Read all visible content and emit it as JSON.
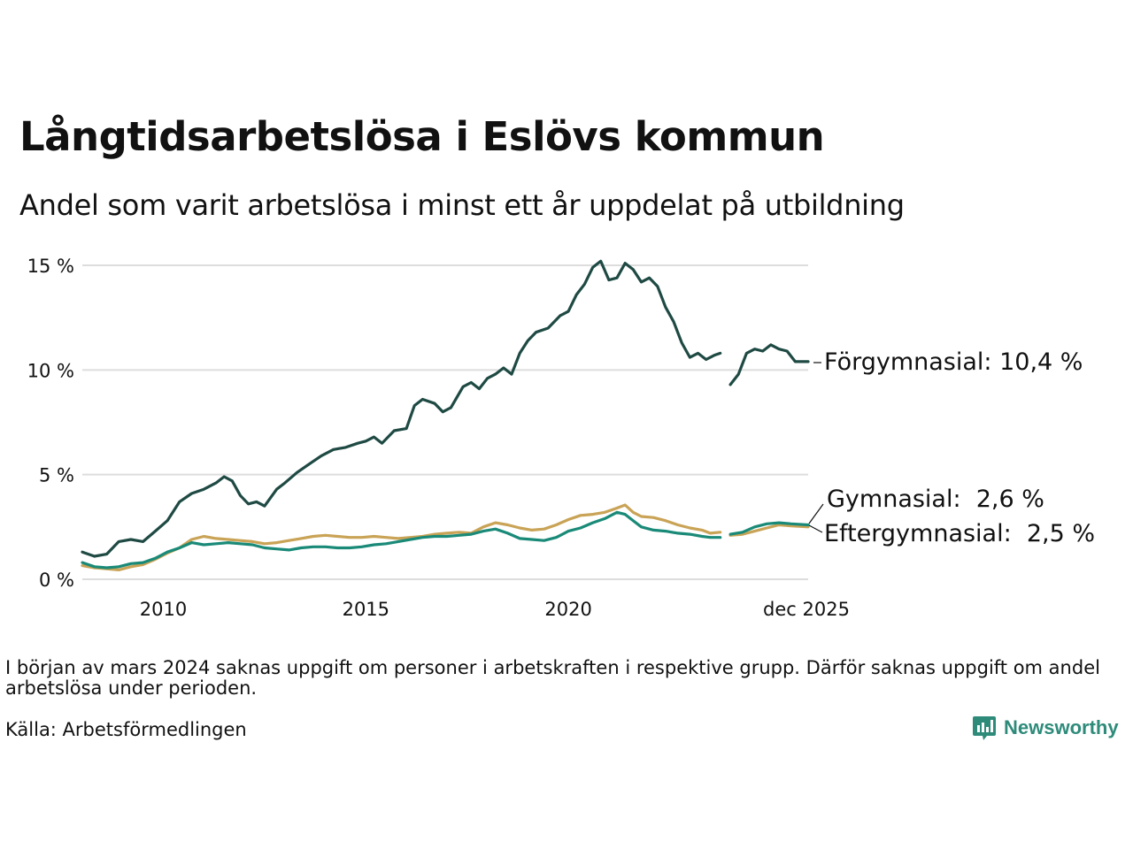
{
  "title": "Långtidsarbetslösa i Eslövs kommun",
  "subtitle": "Andel som varit arbetslösa i minst ett år uppdelat på utbildning",
  "note": "I början av mars 2024 saknas uppgift om personer i arbetskraften i respektive grupp. Därför saknas uppgift om andel arbetslösa under perioden.",
  "source": "Källa: Arbetsförmedlingen",
  "brand": "Newsworthy",
  "brand_icon": "bar-chart-speech-bubble-icon",
  "chart_data": {
    "type": "line",
    "title": "Långtidsarbetslösa i Eslövs kommun",
    "xlabel": "",
    "ylabel": "",
    "xlim": [
      2008.0,
      2025.92
    ],
    "ylim": [
      0,
      15
    ],
    "yticks": [
      0,
      5,
      10,
      15
    ],
    "ytick_labels": [
      "0 %",
      "5 %",
      "10 %",
      "15 %"
    ],
    "xticks": [
      2010,
      2015,
      2020,
      2025.92
    ],
    "xtick_labels": [
      "2010",
      "2015",
      "2020",
      "dec 2025"
    ],
    "grid": true,
    "legend": "direct labels at line ends (right)",
    "gap": [
      2023.75,
      2024.0
    ],
    "series": [
      {
        "name": "Förgymnasial",
        "label": "Förgymnasial: 10,4 %",
        "color": "#1f4a44",
        "points": [
          [
            2008.0,
            1.3
          ],
          [
            2008.3,
            1.1
          ],
          [
            2008.6,
            1.2
          ],
          [
            2008.9,
            1.8
          ],
          [
            2009.2,
            1.9
          ],
          [
            2009.5,
            1.8
          ],
          [
            2009.8,
            2.3
          ],
          [
            2010.1,
            2.8
          ],
          [
            2010.4,
            3.7
          ],
          [
            2010.7,
            4.1
          ],
          [
            2011.0,
            4.3
          ],
          [
            2011.3,
            4.6
          ],
          [
            2011.5,
            4.9
          ],
          [
            2011.7,
            4.7
          ],
          [
            2011.9,
            4.0
          ],
          [
            2012.1,
            3.6
          ],
          [
            2012.3,
            3.7
          ],
          [
            2012.5,
            3.5
          ],
          [
            2012.8,
            4.3
          ],
          [
            2013.0,
            4.6
          ],
          [
            2013.3,
            5.1
          ],
          [
            2013.6,
            5.5
          ],
          [
            2013.9,
            5.9
          ],
          [
            2014.2,
            6.2
          ],
          [
            2014.5,
            6.3
          ],
          [
            2014.8,
            6.5
          ],
          [
            2015.0,
            6.6
          ],
          [
            2015.2,
            6.8
          ],
          [
            2015.4,
            6.5
          ],
          [
            2015.7,
            7.1
          ],
          [
            2016.0,
            7.2
          ],
          [
            2016.2,
            8.3
          ],
          [
            2016.4,
            8.6
          ],
          [
            2016.7,
            8.4
          ],
          [
            2016.9,
            8.0
          ],
          [
            2017.1,
            8.2
          ],
          [
            2017.4,
            9.2
          ],
          [
            2017.6,
            9.4
          ],
          [
            2017.8,
            9.1
          ],
          [
            2018.0,
            9.6
          ],
          [
            2018.2,
            9.8
          ],
          [
            2018.4,
            10.1
          ],
          [
            2018.6,
            9.8
          ],
          [
            2018.8,
            10.8
          ],
          [
            2019.0,
            11.4
          ],
          [
            2019.2,
            11.8
          ],
          [
            2019.5,
            12.0
          ],
          [
            2019.8,
            12.6
          ],
          [
            2020.0,
            12.8
          ],
          [
            2020.2,
            13.6
          ],
          [
            2020.4,
            14.1
          ],
          [
            2020.6,
            14.9
          ],
          [
            2020.8,
            15.2
          ],
          [
            2021.0,
            14.3
          ],
          [
            2021.2,
            14.4
          ],
          [
            2021.4,
            15.1
          ],
          [
            2021.6,
            14.8
          ],
          [
            2021.8,
            14.2
          ],
          [
            2022.0,
            14.4
          ],
          [
            2022.2,
            14.0
          ],
          [
            2022.4,
            13.0
          ],
          [
            2022.6,
            12.3
          ],
          [
            2022.8,
            11.3
          ],
          [
            2023.0,
            10.6
          ],
          [
            2023.2,
            10.8
          ],
          [
            2023.4,
            10.5
          ],
          [
            2023.6,
            10.7
          ],
          [
            2023.75,
            10.8
          ],
          [
            2024.0,
            9.3
          ],
          [
            2024.2,
            9.8
          ],
          [
            2024.4,
            10.8
          ],
          [
            2024.6,
            11.0
          ],
          [
            2024.8,
            10.9
          ],
          [
            2025.0,
            11.2
          ],
          [
            2025.2,
            11.0
          ],
          [
            2025.4,
            10.9
          ],
          [
            2025.6,
            10.4
          ],
          [
            2025.92,
            10.4
          ]
        ]
      },
      {
        "name": "Gymnasial",
        "label": "Gymnasial:  2,6 %",
        "color": "#1a8a78",
        "points": [
          [
            2008.0,
            0.8
          ],
          [
            2008.3,
            0.6
          ],
          [
            2008.6,
            0.55
          ],
          [
            2008.9,
            0.6
          ],
          [
            2009.2,
            0.75
          ],
          [
            2009.5,
            0.8
          ],
          [
            2009.8,
            1.0
          ],
          [
            2010.1,
            1.3
          ],
          [
            2010.4,
            1.5
          ],
          [
            2010.7,
            1.75
          ],
          [
            2011.0,
            1.65
          ],
          [
            2011.3,
            1.7
          ],
          [
            2011.6,
            1.75
          ],
          [
            2011.9,
            1.7
          ],
          [
            2012.2,
            1.65
          ],
          [
            2012.5,
            1.5
          ],
          [
            2012.8,
            1.45
          ],
          [
            2013.1,
            1.4
          ],
          [
            2013.4,
            1.5
          ],
          [
            2013.7,
            1.55
          ],
          [
            2014.0,
            1.55
          ],
          [
            2014.3,
            1.5
          ],
          [
            2014.6,
            1.5
          ],
          [
            2014.9,
            1.55
          ],
          [
            2015.2,
            1.65
          ],
          [
            2015.5,
            1.7
          ],
          [
            2015.8,
            1.8
          ],
          [
            2016.1,
            1.9
          ],
          [
            2016.4,
            2.0
          ],
          [
            2016.7,
            2.05
          ],
          [
            2017.0,
            2.05
          ],
          [
            2017.3,
            2.1
          ],
          [
            2017.6,
            2.15
          ],
          [
            2017.9,
            2.3
          ],
          [
            2018.2,
            2.4
          ],
          [
            2018.5,
            2.2
          ],
          [
            2018.8,
            1.95
          ],
          [
            2019.1,
            1.9
          ],
          [
            2019.4,
            1.85
          ],
          [
            2019.7,
            2.0
          ],
          [
            2020.0,
            2.3
          ],
          [
            2020.3,
            2.45
          ],
          [
            2020.6,
            2.7
          ],
          [
            2020.9,
            2.9
          ],
          [
            2021.2,
            3.2
          ],
          [
            2021.4,
            3.1
          ],
          [
            2021.6,
            2.8
          ],
          [
            2021.8,
            2.5
          ],
          [
            2022.1,
            2.35
          ],
          [
            2022.4,
            2.3
          ],
          [
            2022.7,
            2.2
          ],
          [
            2023.0,
            2.15
          ],
          [
            2023.3,
            2.05
          ],
          [
            2023.5,
            2.0
          ],
          [
            2023.75,
            2.0
          ],
          [
            2024.0,
            2.15
          ],
          [
            2024.3,
            2.25
          ],
          [
            2024.6,
            2.5
          ],
          [
            2024.9,
            2.65
          ],
          [
            2025.2,
            2.7
          ],
          [
            2025.5,
            2.65
          ],
          [
            2025.92,
            2.6
          ]
        ]
      },
      {
        "name": "Eftergymnasial",
        "label": "Eftergymnasial:  2,5 %",
        "color": "#c9a356",
        "points": [
          [
            2008.0,
            0.65
          ],
          [
            2008.3,
            0.55
          ],
          [
            2008.6,
            0.5
          ],
          [
            2008.9,
            0.45
          ],
          [
            2009.2,
            0.6
          ],
          [
            2009.5,
            0.7
          ],
          [
            2009.8,
            0.95
          ],
          [
            2010.1,
            1.25
          ],
          [
            2010.4,
            1.5
          ],
          [
            2010.7,
            1.9
          ],
          [
            2011.0,
            2.05
          ],
          [
            2011.3,
            1.95
          ],
          [
            2011.6,
            1.9
          ],
          [
            2011.9,
            1.85
          ],
          [
            2012.2,
            1.8
          ],
          [
            2012.5,
            1.7
          ],
          [
            2012.8,
            1.75
          ],
          [
            2013.1,
            1.85
          ],
          [
            2013.4,
            1.95
          ],
          [
            2013.7,
            2.05
          ],
          [
            2014.0,
            2.1
          ],
          [
            2014.3,
            2.05
          ],
          [
            2014.6,
            2.0
          ],
          [
            2014.9,
            2.0
          ],
          [
            2015.2,
            2.05
          ],
          [
            2015.5,
            2.0
          ],
          [
            2015.8,
            1.95
          ],
          [
            2016.1,
            2.0
          ],
          [
            2016.4,
            2.05
          ],
          [
            2016.7,
            2.15
          ],
          [
            2017.0,
            2.2
          ],
          [
            2017.3,
            2.25
          ],
          [
            2017.6,
            2.2
          ],
          [
            2017.9,
            2.5
          ],
          [
            2018.2,
            2.7
          ],
          [
            2018.5,
            2.6
          ],
          [
            2018.8,
            2.45
          ],
          [
            2019.1,
            2.35
          ],
          [
            2019.4,
            2.4
          ],
          [
            2019.7,
            2.6
          ],
          [
            2020.0,
            2.85
          ],
          [
            2020.3,
            3.05
          ],
          [
            2020.6,
            3.1
          ],
          [
            2020.9,
            3.2
          ],
          [
            2021.2,
            3.4
          ],
          [
            2021.4,
            3.55
          ],
          [
            2021.6,
            3.2
          ],
          [
            2021.8,
            3.0
          ],
          [
            2022.1,
            2.95
          ],
          [
            2022.4,
            2.8
          ],
          [
            2022.7,
            2.6
          ],
          [
            2023.0,
            2.45
          ],
          [
            2023.3,
            2.35
          ],
          [
            2023.5,
            2.2
          ],
          [
            2023.75,
            2.25
          ],
          [
            2024.0,
            2.1
          ],
          [
            2024.3,
            2.15
          ],
          [
            2024.6,
            2.3
          ],
          [
            2024.9,
            2.45
          ],
          [
            2025.2,
            2.6
          ],
          [
            2025.5,
            2.55
          ],
          [
            2025.92,
            2.5
          ]
        ]
      }
    ]
  }
}
